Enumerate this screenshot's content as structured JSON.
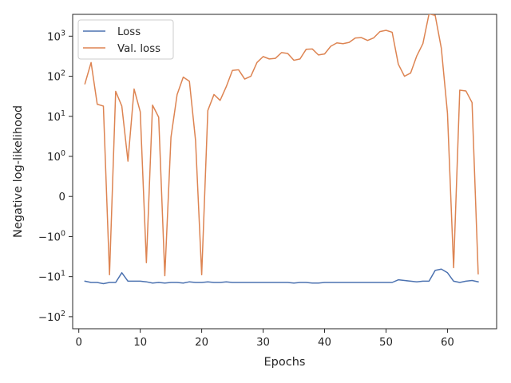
{
  "chart_data": {
    "type": "line",
    "xlabel": "Epochs",
    "ylabel": "Negative log-likelihood",
    "yscale": "symlog",
    "linthresh": 1,
    "xlim": [
      -1,
      68
    ],
    "ylim": [
      -200,
      3500
    ],
    "xticks": [
      0,
      10,
      20,
      30,
      40,
      50,
      60
    ],
    "yticks": [
      {
        "value": 1000,
        "base": "10",
        "exp": "3",
        "sign": ""
      },
      {
        "value": 100,
        "base": "10",
        "exp": "2",
        "sign": ""
      },
      {
        "value": 10,
        "base": "10",
        "exp": "1",
        "sign": ""
      },
      {
        "value": 1,
        "base": "10",
        "exp": "0",
        "sign": ""
      },
      {
        "value": 0,
        "base": "0",
        "exp": "",
        "sign": ""
      },
      {
        "value": -1,
        "base": "10",
        "exp": "0",
        "sign": "−"
      },
      {
        "value": -10,
        "base": "10",
        "exp": "1",
        "sign": "−"
      },
      {
        "value": -100,
        "base": "10",
        "exp": "2",
        "sign": "−"
      }
    ],
    "legend_position": "top-left",
    "grid": false,
    "x": [
      1,
      2,
      3,
      4,
      5,
      6,
      7,
      8,
      9,
      10,
      11,
      12,
      13,
      14,
      15,
      16,
      17,
      18,
      19,
      20,
      21,
      22,
      23,
      24,
      25,
      26,
      27,
      28,
      29,
      30,
      31,
      32,
      33,
      34,
      35,
      36,
      37,
      38,
      39,
      40,
      41,
      42,
      43,
      44,
      45,
      46,
      47,
      48,
      49,
      50,
      51,
      52,
      53,
      54,
      55,
      56,
      57,
      58,
      59,
      60,
      61,
      62,
      63,
      64,
      65
    ],
    "series": [
      {
        "name": "Loss",
        "color": "#4c72b0",
        "values": [
          -13,
          -14,
          -14,
          -15,
          -14,
          -14,
          -8,
          -13,
          -13,
          -13,
          -13.5,
          -14.5,
          -14,
          -14.5,
          -14,
          -14,
          -14.5,
          -13.5,
          -14,
          -14,
          -13.5,
          -14,
          -14,
          -13.5,
          -14,
          -14,
          -14,
          -14,
          -14,
          -14,
          -14,
          -14,
          -14,
          -14,
          -14.5,
          -14,
          -14,
          -14.5,
          -14.5,
          -14,
          -14,
          -14,
          -14,
          -14,
          -14,
          -14,
          -14,
          -14,
          -14,
          -14,
          -14,
          -12,
          -12.5,
          -13,
          -13.5,
          -13,
          -13,
          -7,
          -6.5,
          -8,
          -13,
          -14,
          -13,
          -12.5,
          -13.5
        ]
      },
      {
        "name": "Val. loss",
        "color": "#dd8452",
        "values": [
          65,
          220,
          20,
          18,
          -9,
          42,
          18,
          0.88,
          48,
          13,
          -4.5,
          19,
          9.5,
          -9.5,
          3,
          35,
          95,
          75,
          2.5,
          -9,
          14,
          35,
          25,
          55,
          140,
          145,
          85,
          100,
          220,
          310,
          270,
          280,
          390,
          370,
          250,
          270,
          470,
          480,
          340,
          360,
          560,
          680,
          650,
          700,
          900,
          920,
          780,
          910,
          1300,
          1400,
          1250,
          200,
          100,
          120,
          320,
          650,
          3600,
          3300,
          500,
          12,
          -6,
          45,
          43,
          22,
          -8.5
        ]
      }
    ]
  }
}
